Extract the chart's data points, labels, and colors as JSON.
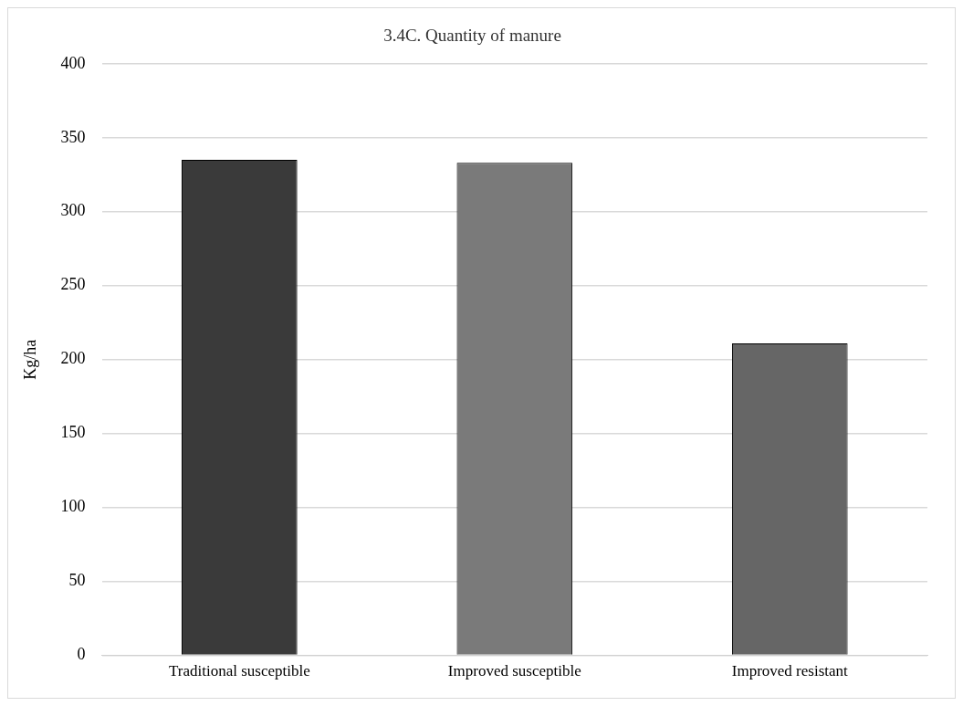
{
  "chart_data": {
    "type": "bar",
    "title": "3.4C. Quantity of manure",
    "ylabel": "Kg/ha",
    "categories": [
      "Traditional susceptible",
      "Improved susceptible",
      "Improved resistant"
    ],
    "values": [
      335,
      333,
      211
    ],
    "colors": [
      "#3a3a3a",
      "#7a7a7a",
      "#666666"
    ],
    "ylim": [
      0,
      400
    ],
    "yticks": [
      0,
      50,
      100,
      150,
      200,
      250,
      300,
      350,
      400
    ],
    "grid": "y",
    "legend": false
  }
}
